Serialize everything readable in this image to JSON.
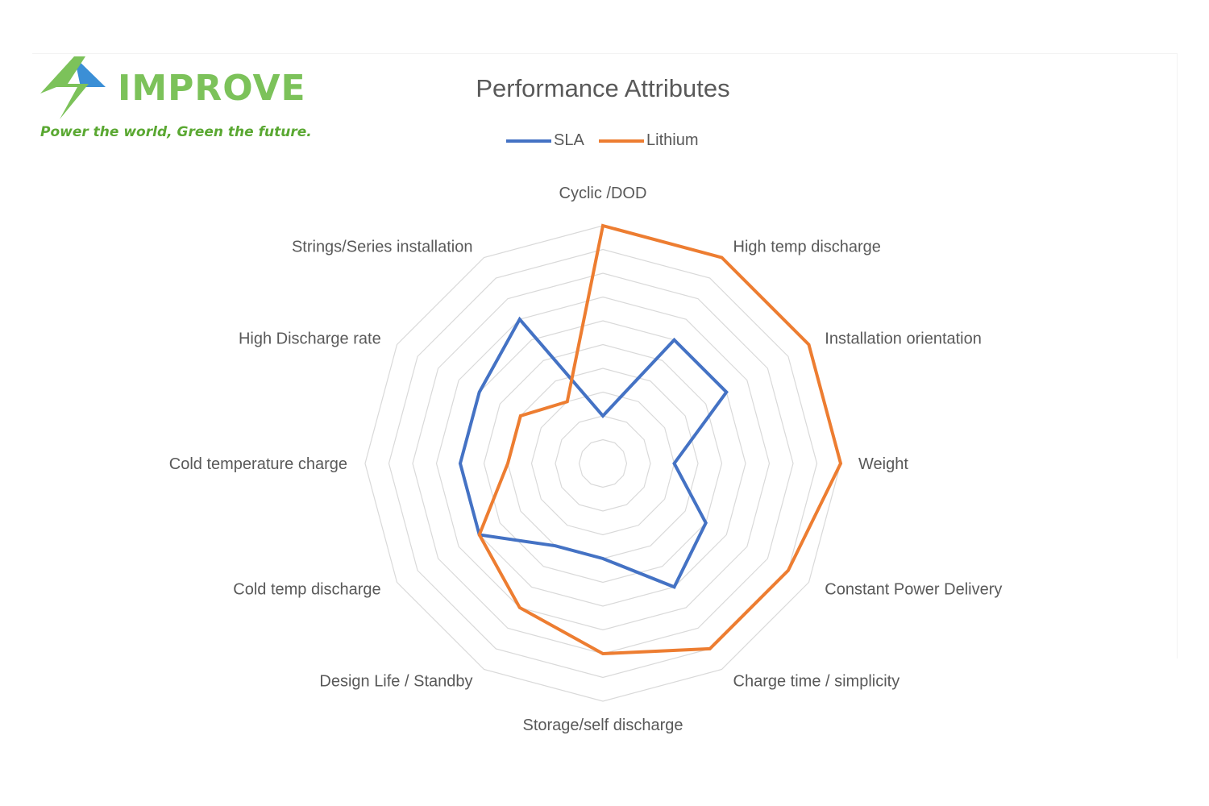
{
  "logo": {
    "brand": "IMPROVE",
    "tagline": "Power the world, Green the future.",
    "colors": {
      "green": "#7cc25a",
      "blue": "#3b8fd6"
    }
  },
  "chart_data": {
    "type": "radar",
    "title": "Performance Attributes",
    "categories": [
      "Cyclic /DOD",
      "High temp discharge",
      "Installation orientation",
      "Weight",
      "Constant Power Delivery",
      "Charge time / simplicity",
      "Storage/self discharge",
      "Design Life / Standby",
      "Cold temp discharge",
      "Cold temperature charge",
      "High Discharge rate",
      "Strings/Series installation"
    ],
    "series": [
      {
        "name": "SLA",
        "color": "#4472c4",
        "values": [
          2,
          6,
          6,
          3,
          5,
          6,
          4,
          4,
          6,
          6,
          6,
          7
        ]
      },
      {
        "name": "Lithium",
        "color": "#ed7d31",
        "values": [
          10,
          10,
          10,
          10,
          9,
          9,
          8,
          7,
          6,
          4,
          4,
          3
        ]
      }
    ],
    "rlim": [
      0,
      10
    ],
    "grid": true,
    "legend_position": "top"
  }
}
